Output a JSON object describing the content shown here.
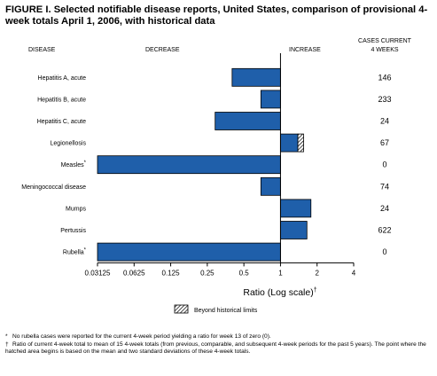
{
  "title": "FIGURE I. Selected notifiable disease reports, United States, comparison of provisional 4-week totals April 1, 2006, with historical data",
  "headers": {
    "disease": "DISEASE",
    "decrease": "DECREASE",
    "increase": "INCREASE",
    "cases_line1": "CASES CURRENT",
    "cases_line2": "4 WEEKS"
  },
  "legend_label": "Beyond historical limits",
  "axis_title": "Ratio (Log scale)",
  "axis_title_mark": "†",
  "footnotes": [
    {
      "mark": "*",
      "text": "No rubella cases were reported for the current 4-week period yielding a ratio for week 13 of zero (0)."
    },
    {
      "mark": "†",
      "text": "Ratio of current 4-week total to mean of 15 4-week totals (from previous, comparable, and subsequent 4-week periods for the past 5 years). The point where the hatched area begins is based on the mean and two standard deviations of these 4-week totals."
    }
  ],
  "colors": {
    "bar": "#1f5faa",
    "bar_edge": "#000000"
  },
  "chart_data": {
    "type": "bar",
    "orientation": "horizontal",
    "x_scale": "log2",
    "xlim": [
      0.03125,
      4
    ],
    "reference": 1,
    "xticks": [
      "0.03125",
      "0.0625",
      "0.125",
      "0.25",
      "0.5",
      "1",
      "2",
      "4"
    ],
    "categories": [
      "Hepatitis A, acute",
      "Hepatitis B, acute",
      "Hepatitis C, acute",
      "Legionellosis",
      "Measles",
      "Meningococcal disease",
      "Mumps",
      "Pertussis",
      "Rubella"
    ],
    "category_marks": [
      "",
      "",
      "",
      "",
      "*",
      "",
      "",
      "",
      "*"
    ],
    "ratios": [
      0.4,
      0.69,
      0.29,
      1.39,
      0.03125,
      0.69,
      1.78,
      1.65,
      0.03125
    ],
    "hatched_to": [
      null,
      null,
      null,
      1.55,
      null,
      null,
      null,
      null,
      null
    ],
    "cases": [
      "146",
      "233",
      "24",
      "67",
      "0",
      "74",
      "24",
      "622",
      "0"
    ]
  }
}
